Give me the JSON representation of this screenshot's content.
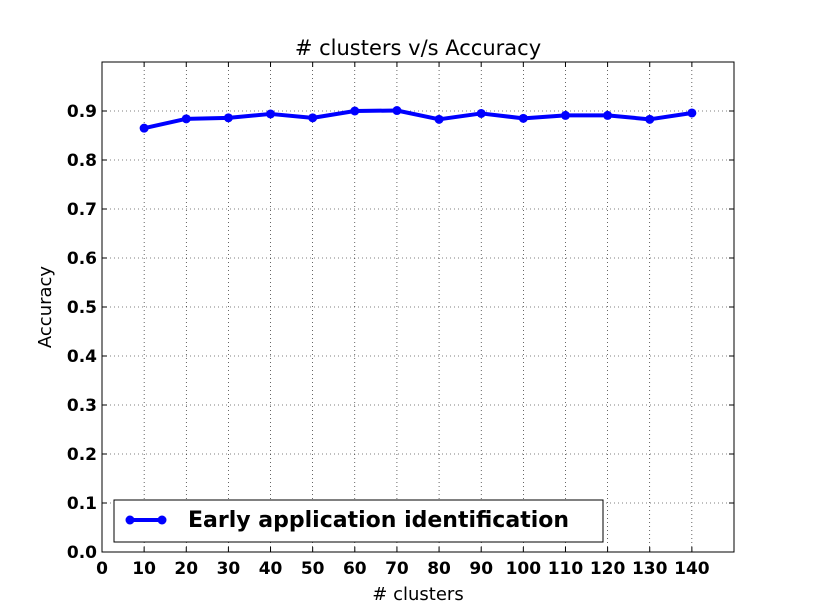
{
  "chart_data": {
    "type": "line",
    "title": "# clusters v/s Accuracy",
    "xlabel": "# clusters",
    "ylabel": "Accuracy",
    "xlim": [
      0,
      150
    ],
    "ylim": [
      0.0,
      1.0
    ],
    "x_ticks": [
      0,
      10,
      20,
      30,
      40,
      50,
      60,
      70,
      80,
      90,
      100,
      110,
      120,
      130,
      140
    ],
    "y_ticks": [
      0.0,
      0.1,
      0.2,
      0.3,
      0.4,
      0.5,
      0.6,
      0.7,
      0.8,
      0.9
    ],
    "x_tick_labels": [
      "0",
      "10",
      "20",
      "30",
      "40",
      "50",
      "60",
      "70",
      "80",
      "90",
      "100",
      "110",
      "120",
      "130",
      "140"
    ],
    "y_tick_labels": [
      "0.0",
      "0.1",
      "0.2",
      "0.3",
      "0.4",
      "0.5",
      "0.6",
      "0.7",
      "0.8",
      "0.9"
    ],
    "grid": true,
    "legend_position": "lower-left",
    "series": [
      {
        "name": "Early application identification",
        "color": "#0000ff",
        "marker": "circle",
        "x": [
          10,
          20,
          30,
          40,
          50,
          60,
          70,
          80,
          90,
          100,
          110,
          120,
          130,
          140
        ],
        "values": [
          0.865,
          0.884,
          0.886,
          0.894,
          0.886,
          0.9,
          0.901,
          0.883,
          0.895,
          0.885,
          0.891,
          0.891,
          0.883,
          0.896
        ]
      }
    ]
  }
}
